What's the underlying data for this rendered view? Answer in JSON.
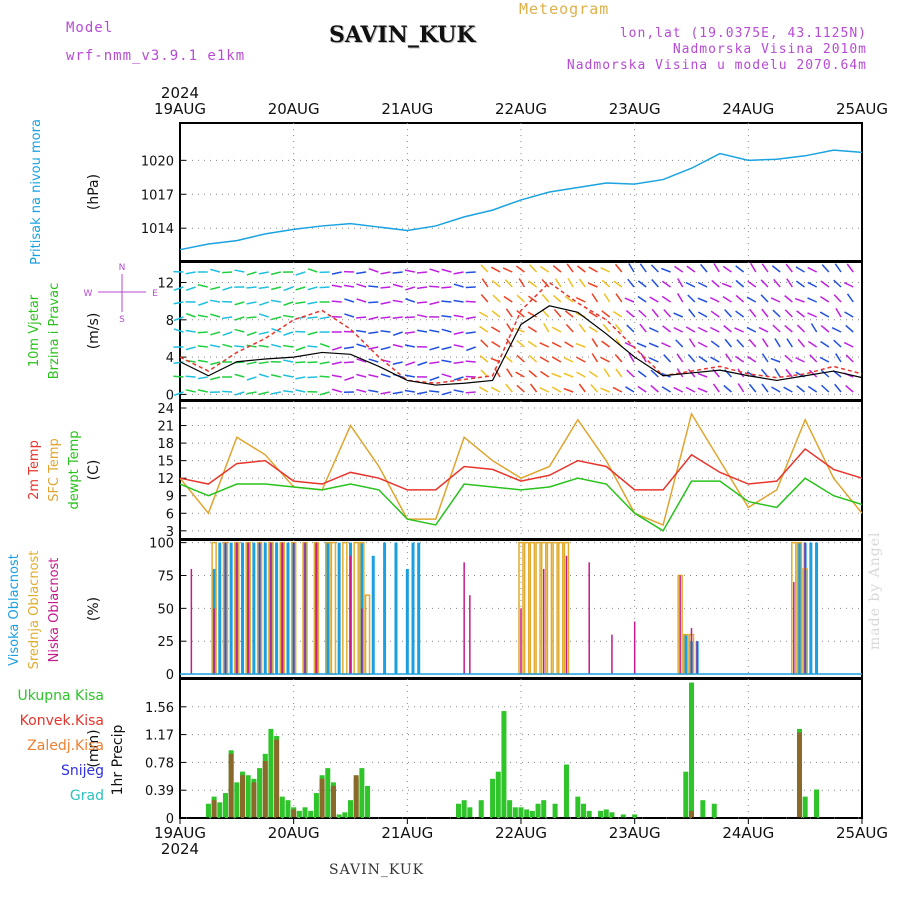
{
  "header": {
    "model_label": "Model",
    "model_name": "wrf-nmm_v3.9.1 e1km",
    "station": "SAVIN_KUK",
    "product": "Meteogram",
    "lonlat": "lon,lat (19.0375E, 43.1125N)",
    "elevation": "Nadmorska Visina 2010m",
    "model_elevation": "Nadmorska Visina u modelu 2070.64m"
  },
  "footer": {
    "station": "SAVIN_KUK",
    "credit": "made by Angel"
  },
  "x_axis": {
    "year": "2024",
    "ticks": [
      "19AUG",
      "20AUG",
      "21AUG",
      "22AUG",
      "23AUG",
      "24AUG",
      "25AUG"
    ],
    "range_days": [
      0,
      6
    ]
  },
  "colors": {
    "pressure": "#1aa3e0",
    "t2m": "#e8352c",
    "sfc": "#dfa52e",
    "dewpt": "#28c21c",
    "high_cloud": "#1a9fe0",
    "mid_cloud": "#e0ac30",
    "low_cloud": "#c41a8c",
    "total_precip": "#2ec42a",
    "conv_precip": "#e8352c",
    "frz_precip": "#f08030",
    "snow": "#3030e0",
    "graupel": "#30c0c0",
    "wind_dir": "#b84bd6"
  },
  "chart_data": [
    {
      "type": "line",
      "panel": "pressure",
      "ylabel_lines": [
        "Pritisak na nivou mora"
      ],
      "unit": "(hPa)",
      "yticks": [
        1014,
        1017,
        1020
      ],
      "ylim": [
        1011.1,
        1023.3
      ],
      "grid": true,
      "series": [
        {
          "x": [
            0,
            0.25,
            0.5,
            0.75,
            1,
            1.25,
            1.5,
            1.75,
            2,
            2.25,
            2.5,
            2.75,
            3,
            3.25,
            3.5,
            3.75,
            4,
            4.25,
            4.5,
            4.75,
            5,
            5.25,
            5.5,
            5.75,
            6
          ],
          "values": [
            1012.1,
            1012.6,
            1012.9,
            1013.5,
            1013.9,
            1014.2,
            1014.4,
            1014.1,
            1013.8,
            1014.2,
            1015.0,
            1015.6,
            1016.5,
            1017.2,
            1017.6,
            1018.0,
            1017.9,
            1018.3,
            1019.3,
            1020.6,
            1020.0,
            1020.1,
            1020.4,
            1020.9,
            1020.7
          ]
        }
      ]
    },
    {
      "type": "line",
      "panel": "wind",
      "ylabel_lines": [
        "10m Vjetar",
        "Brzina i Pravac"
      ],
      "unit": "(m/s)",
      "compass": {
        "n": "N",
        "s": "S",
        "w": "W",
        "e": "E"
      },
      "yticks": [
        0,
        4,
        8,
        12
      ],
      "ylim": [
        -0.6,
        14.2
      ],
      "grid": true,
      "series": [
        {
          "name": "wind speed",
          "x": [
            0,
            0.25,
            0.5,
            0.75,
            1,
            1.25,
            1.5,
            1.75,
            2,
            2.25,
            2.5,
            2.75,
            3,
            3.25,
            3.5,
            3.75,
            4,
            4.25,
            4.5,
            4.75,
            5,
            5.25,
            5.5,
            5.75,
            6
          ],
          "values": [
            3.5,
            2.0,
            3.5,
            3.8,
            4.0,
            4.5,
            4.3,
            3.0,
            1.5,
            1.0,
            1.2,
            1.5,
            7.5,
            9.5,
            8.8,
            6.5,
            4.0,
            2.0,
            2.3,
            2.6,
            2.0,
            1.5,
            2.0,
            2.5,
            1.8
          ]
        },
        {
          "name": "gust",
          "x": [
            0,
            0.25,
            0.5,
            0.75,
            1,
            1.25,
            1.5,
            1.75,
            2,
            2.25,
            2.5,
            2.75,
            3,
            3.25,
            3.5,
            3.75,
            4,
            4.25,
            4.5,
            4.75,
            5,
            5.25,
            5.5,
            5.75,
            6
          ],
          "values": [
            4.0,
            2.5,
            4.5,
            6.0,
            8.0,
            9.0,
            7.0,
            4.0,
            1.5,
            1.2,
            1.6,
            2.0,
            9.0,
            12.0,
            9.8,
            8.0,
            5.0,
            2.0,
            2.5,
            3.0,
            2.2,
            1.8,
            2.2,
            3.0,
            2.2
          ]
        }
      ]
    },
    {
      "type": "line",
      "panel": "temperature",
      "ylabel_lines": [
        "2m Temp",
        "SFC Temp",
        "dewpt Temp"
      ],
      "unit": "(C)",
      "yticks": [
        3,
        6,
        9,
        12,
        15,
        18,
        21,
        24
      ],
      "ylim": [
        1.6,
        25.2
      ],
      "grid": true,
      "series": [
        {
          "name": "2m Temp",
          "x": [
            0,
            0.25,
            0.5,
            0.75,
            1,
            1.25,
            1.5,
            1.75,
            2,
            2.25,
            2.5,
            2.75,
            3,
            3.25,
            3.5,
            3.75,
            4,
            4.25,
            4.5,
            4.75,
            5,
            5.25,
            5.5,
            5.75,
            6
          ],
          "values": [
            12.0,
            11.0,
            14.5,
            15.0,
            11.5,
            11.0,
            13.0,
            12.0,
            10.0,
            10.0,
            14.0,
            13.5,
            11.5,
            12.5,
            15.0,
            14.0,
            10.0,
            10.0,
            16.0,
            13.0,
            11.0,
            11.5,
            17.0,
            13.5,
            12.0
          ]
        },
        {
          "name": "SFC Temp",
          "x": [
            0,
            0.25,
            0.5,
            0.75,
            1,
            1.25,
            1.5,
            1.75,
            2,
            2.25,
            2.5,
            2.75,
            3,
            3.25,
            3.5,
            3.75,
            4,
            4.25,
            4.5,
            4.75,
            5,
            5.25,
            5.5,
            5.75,
            6
          ],
          "values": [
            12.0,
            6.0,
            19.0,
            16.0,
            10.5,
            10.0,
            21.0,
            14.0,
            5.0,
            5.0,
            19.0,
            15.0,
            12.0,
            14.0,
            22.0,
            15.0,
            6.0,
            4.0,
            23.0,
            15.0,
            7.0,
            10.0,
            22.0,
            12.0,
            6.0
          ]
        },
        {
          "name": "dewpt Temp",
          "x": [
            0,
            0.25,
            0.5,
            0.75,
            1,
            1.25,
            1.5,
            1.75,
            2,
            2.25,
            2.5,
            2.75,
            3,
            3.25,
            3.5,
            3.75,
            4,
            4.25,
            4.5,
            4.75,
            5,
            5.25,
            5.5,
            5.75,
            6
          ],
          "values": [
            11.0,
            9.0,
            11.0,
            11.0,
            10.5,
            10.0,
            11.0,
            10.0,
            5.0,
            4.0,
            11.0,
            10.5,
            10.0,
            10.5,
            12.0,
            11.0,
            6.0,
            3.0,
            11.5,
            11.5,
            8.0,
            7.0,
            12.0,
            9.0,
            7.5
          ]
        }
      ]
    },
    {
      "type": "bar",
      "panel": "clouds",
      "ylabel_lines": [
        "Visoka Oblacnost",
        "Srednja Oblacnost",
        "Niska Oblacnost"
      ],
      "unit": "(%)",
      "yticks": [
        0,
        25,
        50,
        75,
        100
      ],
      "ylim": [
        -3,
        102
      ],
      "grid": true,
      "series": [
        {
          "name": "Visoka Oblacnost",
          "x": [
            0.3,
            0.35,
            0.4,
            0.45,
            0.5,
            0.55,
            0.6,
            0.65,
            0.7,
            0.75,
            0.8,
            0.85,
            0.9,
            0.95,
            1.0,
            1.1,
            1.2,
            1.3,
            1.4,
            1.5,
            1.6,
            1.7,
            1.8,
            1.9,
            2.0,
            2.05,
            2.1,
            4.45,
            4.5,
            4.55,
            5.45,
            5.5,
            5.55,
            5.6
          ],
          "values": [
            80,
            100,
            100,
            100,
            100,
            100,
            100,
            100,
            100,
            100,
            100,
            100,
            100,
            100,
            100,
            100,
            100,
            100,
            100,
            100,
            100,
            90,
            100,
            100,
            80,
            100,
            100,
            30,
            25,
            25,
            100,
            100,
            100,
            100
          ]
        },
        {
          "name": "Srednja Oblacnost",
          "x": [
            0.3,
            0.4,
            0.5,
            0.6,
            0.7,
            0.8,
            0.9,
            1.0,
            1.1,
            1.2,
            1.3,
            1.35,
            1.45,
            1.55,
            1.6,
            1.65,
            3.0,
            3.05,
            3.1,
            3.15,
            3.2,
            3.25,
            3.3,
            3.35,
            3.4,
            4.4,
            4.45,
            4.5,
            5.4,
            5.45,
            5.5
          ],
          "values": [
            100,
            100,
            100,
            100,
            100,
            100,
            100,
            100,
            100,
            100,
            100,
            100,
            100,
            100,
            100,
            60,
            100,
            100,
            100,
            100,
            100,
            100,
            100,
            100,
            100,
            75,
            30,
            30,
            100,
            100,
            80
          ]
        },
        {
          "name": "Niska Oblacnost",
          "x": [
            0.1,
            0.3,
            0.4,
            0.5,
            0.6,
            0.7,
            0.8,
            0.9,
            1.0,
            1.1,
            1.2,
            1.5,
            1.6,
            2.5,
            2.55,
            3.0,
            3.2,
            3.4,
            3.6,
            3.8,
            4.0,
            4.4,
            4.5,
            4.55,
            5.4,
            5.5
          ],
          "values": [
            80,
            50,
            100,
            100,
            100,
            100,
            100,
            100,
            100,
            100,
            100,
            90,
            50,
            85,
            60,
            50,
            80,
            90,
            85,
            30,
            40,
            75,
            35,
            25,
            70,
            100
          ]
        }
      ]
    },
    {
      "type": "bar",
      "panel": "precip",
      "ylabel_lines": [
        "1hr Precip"
      ],
      "unit": "(mm)",
      "legend": [
        "Ukupna Kisa",
        "Konvek.Kisa",
        "Zaledj.Kisa",
        "Snijeg",
        "Grad"
      ],
      "yticks": [
        0,
        0.39,
        0.78,
        1.17,
        1.56
      ],
      "ylim": [
        0,
        1.95
      ],
      "grid": true,
      "series": [
        {
          "name": "Ukupna Kisa",
          "x": [
            0.25,
            0.3,
            0.35,
            0.4,
            0.45,
            0.5,
            0.55,
            0.6,
            0.65,
            0.7,
            0.75,
            0.8,
            0.85,
            0.9,
            0.95,
            1.0,
            1.05,
            1.1,
            1.15,
            1.2,
            1.25,
            1.3,
            1.35,
            1.4,
            1.45,
            1.5,
            1.55,
            1.6,
            1.65,
            2.45,
            2.5,
            2.55,
            2.65,
            2.75,
            2.8,
            2.85,
            2.9,
            2.95,
            3.0,
            3.05,
            3.1,
            3.15,
            3.2,
            3.3,
            3.4,
            3.5,
            3.55,
            3.6,
            3.7,
            3.75,
            3.8,
            3.9,
            4.0,
            4.45,
            4.5,
            4.6,
            4.7,
            5.45,
            5.5,
            5.6
          ],
          "values": [
            0.2,
            0.3,
            0.22,
            0.35,
            0.95,
            0.5,
            0.65,
            0.6,
            0.55,
            0.7,
            0.9,
            1.25,
            1.15,
            0.3,
            0.25,
            0.15,
            0.1,
            0.15,
            0.1,
            0.35,
            0.6,
            0.7,
            0.5,
            0.05,
            0.08,
            0.25,
            0.55,
            0.7,
            0.45,
            0.2,
            0.25,
            0.15,
            0.25,
            0.55,
            0.65,
            1.5,
            0.25,
            0.15,
            0.15,
            0.12,
            0.1,
            0.2,
            0.25,
            0.2,
            0.75,
            0.3,
            0.2,
            0.1,
            0.1,
            0.12,
            0.08,
            0.05,
            0.05,
            0.65,
            1.9,
            0.25,
            0.2,
            1.25,
            0.3,
            0.4
          ]
        },
        {
          "name": "Konvek.Kisa",
          "x": [
            0.3,
            0.45,
            0.55,
            0.65,
            0.75,
            0.85,
            1.0,
            1.25,
            1.35,
            1.55,
            4.5,
            5.45
          ],
          "values": [
            0.25,
            0.9,
            0.6,
            0.5,
            0.8,
            1.1,
            0.12,
            0.55,
            0.45,
            0.6,
            0.1,
            1.2
          ]
        }
      ]
    }
  ]
}
